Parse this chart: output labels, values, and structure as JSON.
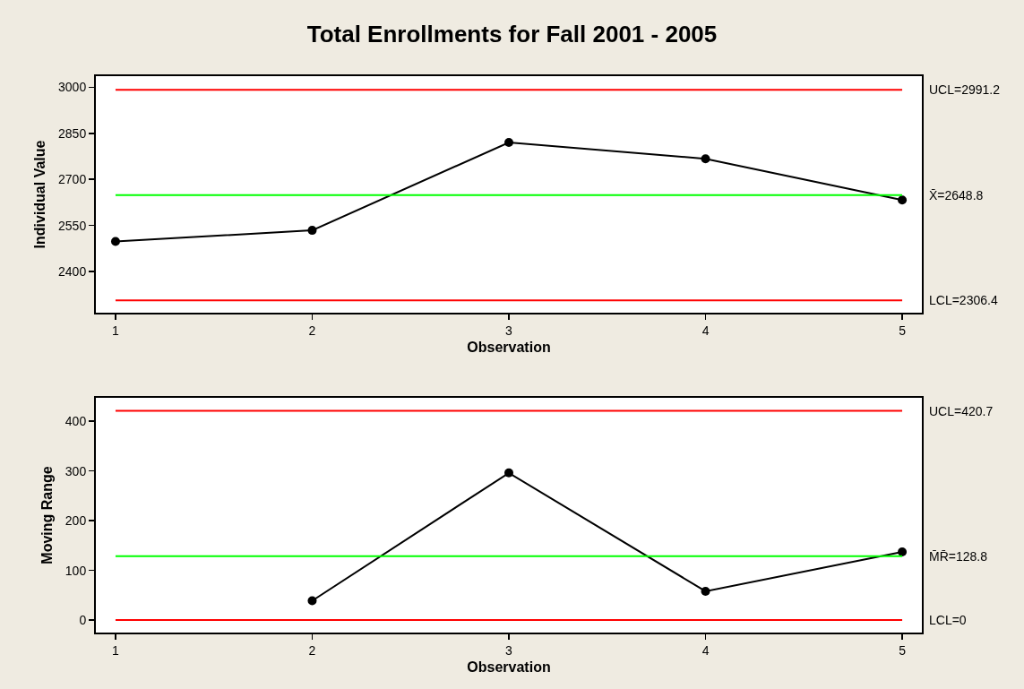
{
  "chart_data": [
    {
      "type": "line",
      "title": "Total Enrollments for Fall 2001 - 2005",
      "xlabel": "Observation",
      "ylabel": "Individual Value",
      "x": [
        1,
        2,
        3,
        4,
        5
      ],
      "series": [
        {
          "color": "#000000",
          "values": [
            2498,
            2534,
            2820,
            2767,
            2633
          ]
        }
      ],
      "xlim": [
        0.9,
        5.1
      ],
      "xticks": [
        1,
        2,
        3,
        4,
        5
      ],
      "ylim": [
        2266,
        3036
      ],
      "yticks": [
        2400,
        2550,
        2700,
        2850,
        3000
      ],
      "marker": "circle",
      "line_style": "solid",
      "grid": false,
      "ref_lines": [
        {
          "axis": "y",
          "value": 2991.2,
          "label": "UCL=2991.2",
          "color": "#ff0000"
        },
        {
          "axis": "y",
          "value": 2648.8,
          "label": "X̄=2648.8",
          "color": "#00ff00"
        },
        {
          "axis": "y",
          "value": 2306.4,
          "label": "LCL=2306.4",
          "color": "#ff0000"
        }
      ]
    },
    {
      "type": "line",
      "xlabel": "Observation",
      "ylabel": "Moving Range",
      "x": [
        2,
        3,
        4,
        5
      ],
      "series": [
        {
          "color": "#000000",
          "values": [
            39,
            296,
            58,
            137
          ]
        }
      ],
      "xlim": [
        0.9,
        5.1
      ],
      "xticks": [
        1,
        2,
        3,
        4,
        5
      ],
      "ylim": [
        -25,
        447
      ],
      "yticks": [
        0,
        100,
        200,
        300,
        400
      ],
      "marker": "circle",
      "line_style": "solid",
      "grid": false,
      "ref_lines": [
        {
          "axis": "y",
          "value": 420.7,
          "label": "UCL=420.7",
          "color": "#ff0000"
        },
        {
          "axis": "y",
          "value": 128.8,
          "label": "M̄R̄=128.8",
          "color": "#00ff00"
        },
        {
          "axis": "y",
          "value": 0,
          "label": "LCL=0",
          "color": "#ff0000"
        }
      ]
    }
  ]
}
